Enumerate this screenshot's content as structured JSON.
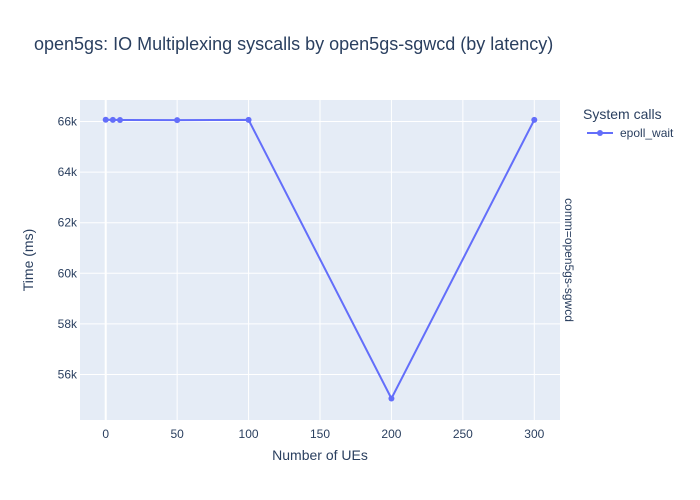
{
  "chart_data": {
    "type": "line",
    "title": "open5gs: IO Multiplexing syscalls by open5gs-sgwcd (by latency)",
    "xlabel": "Number of UEs",
    "ylabel": "Time (ms)",
    "xlim": [
      -18,
      318
    ],
    "ylim": [
      54200,
      66850
    ],
    "x_ticks": [
      0,
      50,
      100,
      150,
      200,
      250,
      300
    ],
    "y_ticks": [
      56000,
      58000,
      60000,
      62000,
      64000,
      66000
    ],
    "y_tick_labels": [
      "56k",
      "58k",
      "60k",
      "62k",
      "64k",
      "66k"
    ],
    "grid": true,
    "legend": {
      "title": "System calls",
      "placement": "right"
    },
    "facet_label": "comm=open5gs-sgwcd",
    "series": [
      {
        "name": "epoll_wait",
        "color": "#636efa",
        "x": [
          0,
          5,
          10,
          50,
          100,
          200,
          300
        ],
        "y": [
          66070,
          66065,
          66060,
          66055,
          66065,
          55050,
          66065
        ]
      }
    ]
  },
  "colors": {
    "plot_bg": "#e5ecf6",
    "grid": "#ffffff",
    "text": "#2a3f5f"
  }
}
